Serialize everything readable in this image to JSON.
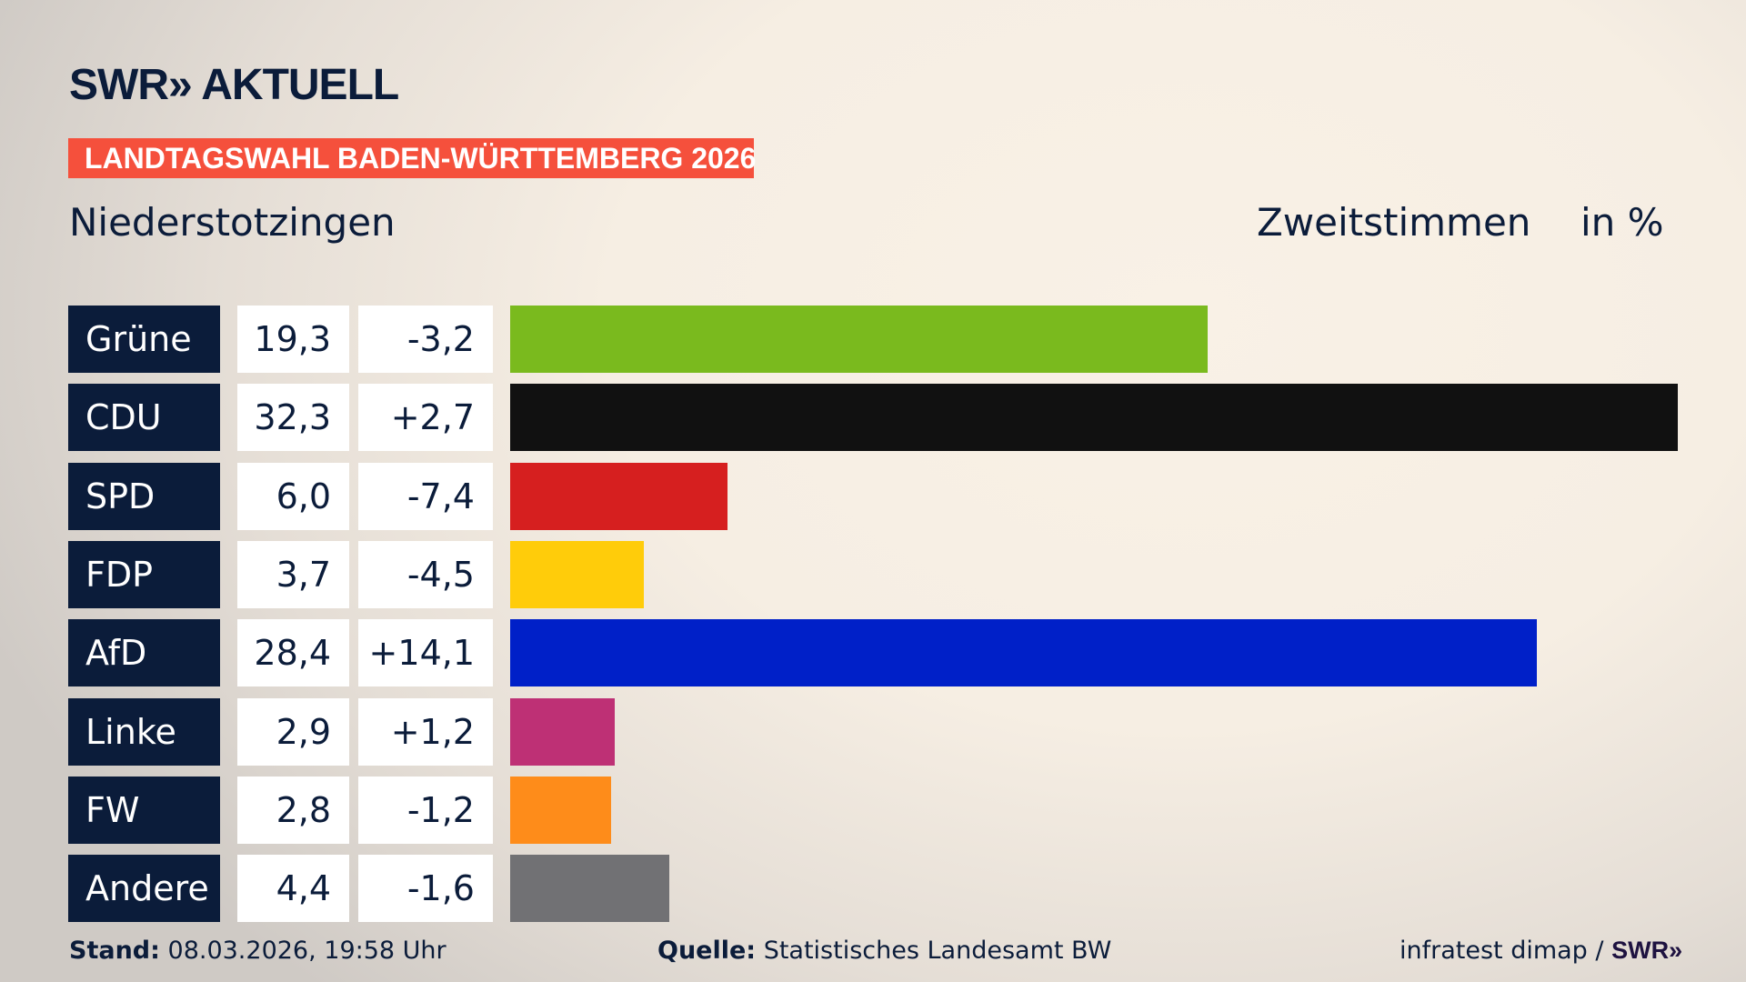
{
  "header": {
    "logo": "SWR» AKTUELL",
    "banner": "LANDTAGSWAHL BADEN-WÜRTTEMBERG 2026",
    "place": "Niederstotzingen",
    "measure": "Zweitstimmen",
    "unit": "in %",
    "banner_color": "#f5503c"
  },
  "chart_data": {
    "type": "bar",
    "orientation": "horizontal",
    "categories": [
      "Grüne",
      "CDU",
      "SPD",
      "FDP",
      "AfD",
      "Linke",
      "FW",
      "Andere"
    ],
    "values_label": [
      "19,3",
      "32,3",
      "6,0",
      "3,7",
      "28,4",
      "2,9",
      "2,8",
      "4,4"
    ],
    "diff_label": [
      "-3,2",
      "+2,7",
      "-7,4",
      "-4,5",
      "+14,1",
      "+1,2",
      "-1,2",
      "-1,6"
    ],
    "values": [
      19.3,
      32.3,
      6.0,
      3.7,
      28.4,
      2.9,
      2.8,
      4.4
    ],
    "diffs": [
      -3.2,
      2.7,
      -7.4,
      -4.5,
      14.1,
      1.2,
      -1.2,
      -1.6
    ],
    "colors": [
      "#7aba1e",
      "#111111",
      "#d61f1f",
      "#ffcc0a",
      "#0020c8",
      "#be3075",
      "#fe8c1a",
      "#717174"
    ],
    "grid": false
  },
  "footer": {
    "stand_label": "Stand:",
    "stand_value": "08.03.2026, 19:58 Uhr",
    "source_label": "Quelle:",
    "source_value": "Statistisches Landesamt BW",
    "credit": "infratest dimap /",
    "credit_logo": "SWR»"
  }
}
